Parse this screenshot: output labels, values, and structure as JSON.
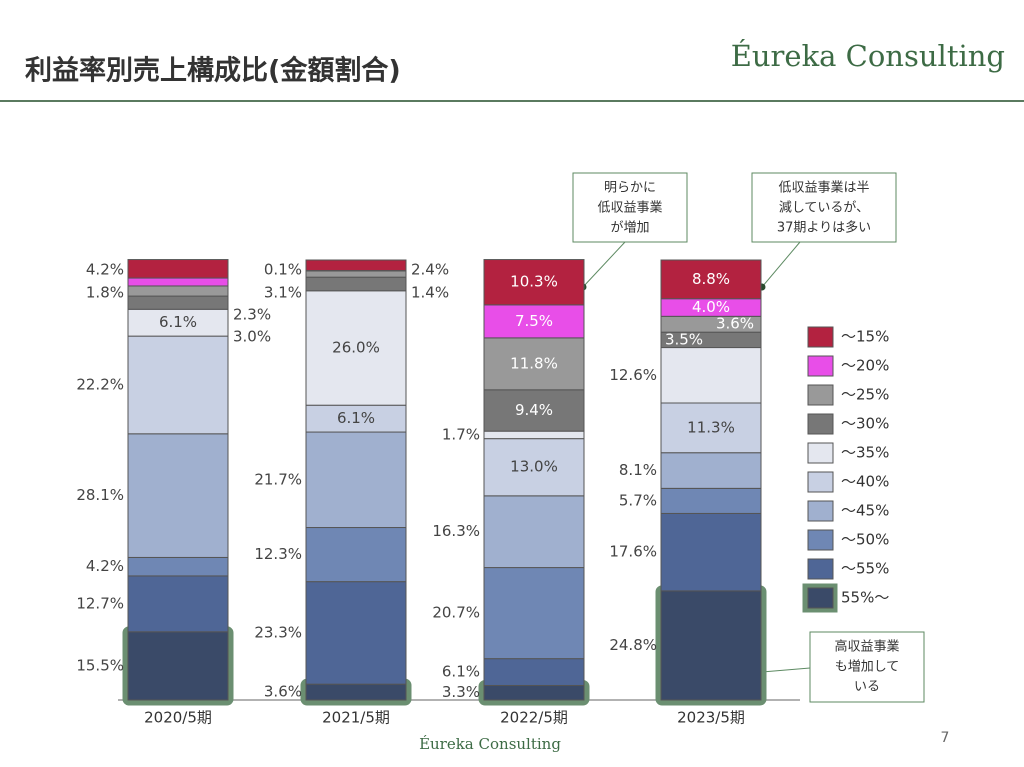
{
  "header": {
    "title": "利益率別売上構成比(金額割合)",
    "logo": "Éureka Consulting"
  },
  "chart_data": {
    "type": "stacked_bar",
    "categories": [
      "2020/5期",
      "2021/5期",
      "2022/5期",
      "2023/5期"
    ],
    "ylim": [
      0,
      100
    ],
    "series": [
      {
        "name": "55%～",
        "color": "#3a4a68",
        "border_color": "#6b8f71",
        "values": [
          15.5,
          3.6,
          3.3,
          24.8
        ],
        "value_labels": [
          "15.5%",
          "3.6%",
          "3.3%",
          "24.8%"
        ]
      },
      {
        "name": "～55%",
        "color": "#4f6696",
        "values": [
          12.7,
          23.3,
          6.1,
          17.6
        ],
        "value_labels": [
          "12.7%",
          "23.3%",
          "6.1%",
          "17.6%"
        ]
      },
      {
        "name": "～50%",
        "color": "#6f87b4",
        "values": [
          4.2,
          12.3,
          20.7,
          5.7
        ],
        "value_labels": [
          "4.2%",
          "12.3%",
          "20.7%",
          "5.7%"
        ]
      },
      {
        "name": "～45%",
        "color": "#a0b0cf",
        "values": [
          28.1,
          21.7,
          16.3,
          8.1
        ],
        "value_labels": [
          "28.1%",
          "21.7%",
          "16.3%",
          "8.1%"
        ]
      },
      {
        "name": "～40%",
        "color": "#c8d0e3",
        "values": [
          22.2,
          6.1,
          13.0,
          11.3
        ],
        "value_labels": [
          "22.2%",
          "6.1%",
          "13.0%",
          "11.3%"
        ]
      },
      {
        "name": "～35%",
        "color": "#e4e7ef",
        "values": [
          6.1,
          26.0,
          1.7,
          12.6
        ],
        "value_labels": [
          "6.1%",
          "26.0%",
          "1.7%",
          "12.6%"
        ]
      },
      {
        "name": "～30%",
        "color": "#777777",
        "values": [
          3.0,
          3.1,
          9.4,
          3.5
        ],
        "value_labels": [
          "3.0%",
          "3.1%",
          "9.4%",
          "3.5%"
        ]
      },
      {
        "name": "～25%",
        "color": "#999999",
        "values": [
          2.3,
          1.4,
          11.8,
          3.6
        ],
        "value_labels": [
          "2.3%",
          "1.4%",
          "11.8%",
          "3.6%"
        ]
      },
      {
        "name": "～20%",
        "color": "#e84ee8",
        "values": [
          1.8,
          0.1,
          7.5,
          4.0
        ],
        "value_labels": [
          "1.8%",
          "0.1%",
          "7.5%",
          "4.0%"
        ]
      },
      {
        "name": "～15%",
        "color": "#b32240",
        "values": [
          4.2,
          2.4,
          10.3,
          8.8
        ],
        "value_labels": [
          "4.2%",
          "2.4%",
          "10.3%",
          "8.8%"
        ]
      }
    ],
    "annotations": [
      {
        "lines": [
          "明らかに",
          "低収益事業",
          "が増加"
        ]
      },
      {
        "lines": [
          "低収益事業は半",
          "減しているが、",
          "37期よりは多い"
        ]
      },
      {
        "lines": [
          "高収益事業",
          "も増加して",
          "いる"
        ]
      }
    ]
  },
  "footer": {
    "logo": "Éureka Consulting",
    "page": "7"
  }
}
